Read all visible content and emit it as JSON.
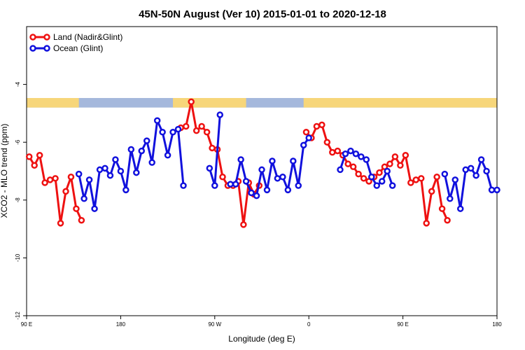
{
  "chart_data": {
    "type": "line",
    "title": "45N-50N August (Ver 10)   2015-01-01 to 2020-12-18",
    "xlabel": "Longitude (deg E)",
    "ylabel": "XCO2 - MLO trend (ppm)",
    "xlim": [
      90,
      540
    ],
    "ylim": [
      -12,
      -2
    ],
    "xticks": [
      {
        "value": 90,
        "label": "90 E"
      },
      {
        "value": 180,
        "label": "180"
      },
      {
        "value": 270,
        "label": "90 W"
      },
      {
        "value": 360,
        "label": "0"
      },
      {
        "value": 450,
        "label": "90 E"
      },
      {
        "value": 540,
        "label": "180"
      }
    ],
    "yticks": [
      -12,
      -10,
      -8,
      -6,
      -4
    ],
    "legend_position": "top-left",
    "colors": {
      "land": "#ee1111",
      "ocean": "#1111dd",
      "sand": "#f7d67a",
      "water": "#a5b8dc"
    },
    "legend": [
      {
        "label": "Land (Nadir&Glint)",
        "color": "#ee1111"
      },
      {
        "label": "Ocean (Glint)",
        "color": "#1111dd"
      }
    ],
    "series": [
      {
        "name": "Land (Nadir&Glint)",
        "color": "#ee1111",
        "segments": [
          {
            "x": [
              92.5,
              97.5,
              102.5,
              107.5,
              112.5,
              117.5,
              122.5,
              127.5,
              132.5,
              137.5,
              142.5
            ],
            "y": [
              -6.5,
              -6.8,
              -6.45,
              -7.4,
              -7.3,
              -7.25,
              -8.8,
              -7.7,
              -7.2,
              -8.3,
              -8.7
            ]
          },
          {
            "x": [
              237.5,
              242.5,
              247.5,
              252.5,
              257.5,
              262.5,
              267.5,
              272.5,
              277.5,
              282.5,
              287.5,
              292.5,
              297.5,
              302.5,
              307.5,
              312.5
            ],
            "y": [
              -5.5,
              -5.45,
              -4.6,
              -5.6,
              -5.45,
              -5.65,
              -6.2,
              -6.25,
              -7.2,
              -7.5,
              -7.5,
              -7.35,
              -8.85,
              -7.4,
              -7.8,
              -7.5
            ]
          },
          {
            "x": [
              357.5,
              362.5,
              367.5,
              372.5,
              377.5,
              382.5,
              387.5,
              392.5,
              397.5,
              402.5,
              407.5,
              412.5,
              417.5,
              422.5,
              427.5,
              432.5,
              437.5,
              442.5,
              447.5,
              452.5,
              457.5,
              462.5
            ],
            "y": [
              -5.65,
              -5.85,
              -5.45,
              -5.4,
              -6.0,
              -6.35,
              -6.3,
              -6.45,
              -6.75,
              -6.85,
              -7.1,
              -7.25,
              -7.35,
              -7.2,
              -7.05,
              -6.85,
              -6.75,
              -6.5,
              -6.8,
              -6.45,
              -7.4,
              -7.3
            ]
          },
          {
            "x": [
              467.5,
              472.5,
              477.5,
              482.5,
              487.5,
              492.5
            ],
            "y": [
              -7.25,
              -8.8,
              -7.7,
              -7.2,
              -8.3,
              -8.7
            ]
          }
        ]
      },
      {
        "name": "Ocean (Glint)",
        "color": "#1111dd",
        "segments": [
          {
            "x": [
              140,
              145,
              150,
              155,
              160,
              165,
              170,
              175,
              180,
              185,
              190,
              195,
              200,
              205,
              210,
              215,
              220,
              225,
              230,
              235,
              240
            ],
            "y": [
              -7.1,
              -7.95,
              -7.3,
              -8.3,
              -6.95,
              -6.9,
              -7.15,
              -6.6,
              -7.0,
              -7.65,
              -6.25,
              -7.05,
              -6.3,
              -5.95,
              -6.7,
              -5.25,
              -5.65,
              -6.45,
              -5.65,
              -5.55,
              -7.5
            ]
          },
          {
            "x": [
              265,
              270,
              275
            ],
            "y": [
              -6.9,
              -7.5,
              -5.05
            ]
          },
          {
            "x": [
              285,
              290,
              295,
              300,
              305,
              310,
              315,
              320,
              325,
              330,
              335,
              340,
              345,
              350,
              355,
              360
            ],
            "y": [
              -7.45,
              -7.45,
              -6.6,
              -7.35,
              -7.75,
              -7.85,
              -6.95,
              -7.65,
              -6.65,
              -7.25,
              -7.2,
              -7.65,
              -6.65,
              -7.5,
              -6.1,
              -5.85
            ]
          },
          {
            "x": [
              390,
              395,
              400,
              405,
              410,
              415,
              420,
              425,
              430,
              435,
              440
            ],
            "y": [
              -6.95,
              -6.4,
              -6.3,
              -6.4,
              -6.5,
              -6.6,
              -7.2,
              -7.5,
              -7.35,
              -7.0,
              -7.5
            ]
          },
          {
            "x": [
              490,
              495,
              500,
              505,
              510,
              515,
              520,
              525,
              530,
              535,
              540
            ],
            "y": [
              -7.1,
              -7.95,
              -7.3,
              -8.3,
              -6.95,
              -6.9,
              -7.15,
              -6.6,
              -7.0,
              -7.65,
              -7.65
            ]
          }
        ]
      }
    ],
    "surface_strip": {
      "y_range": [
        -4.47,
        -4.8
      ],
      "sand_intervals": [
        [
          90,
          140
        ],
        [
          230,
          300
        ],
        [
          355,
          540
        ]
      ]
    }
  }
}
